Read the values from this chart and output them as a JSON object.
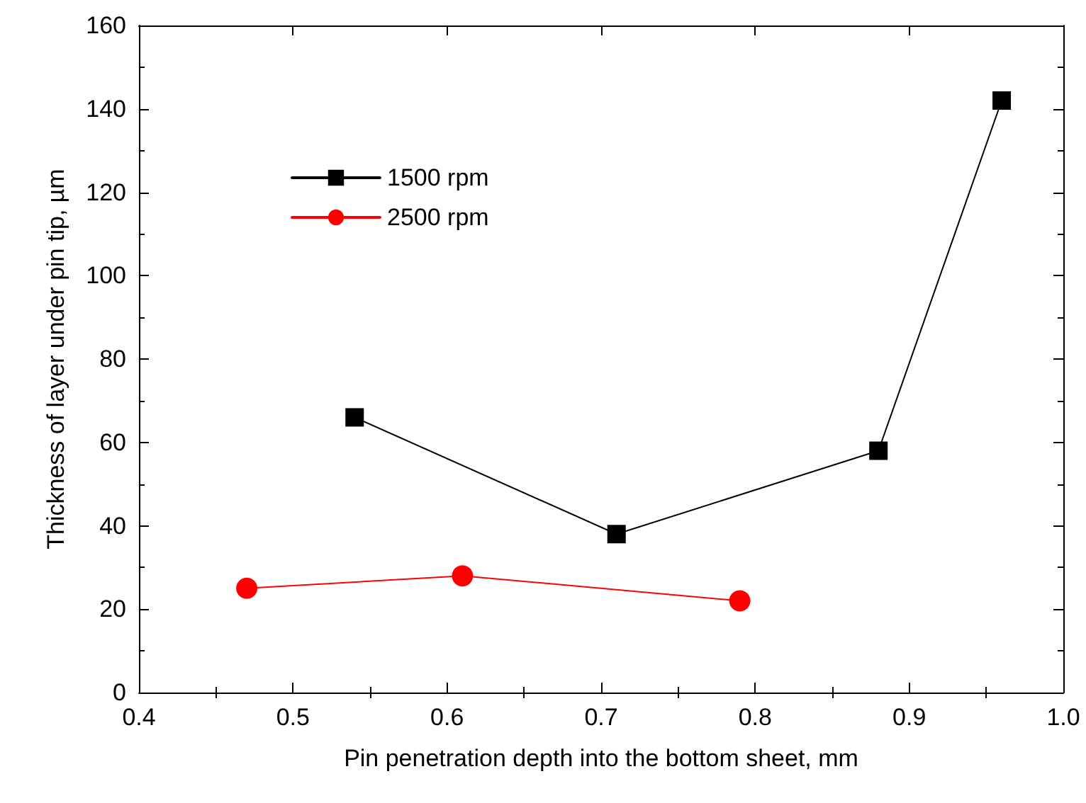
{
  "chart_data": {
    "type": "line",
    "xlabel": "Pin penetration depth into the bottom sheet, mm",
    "ylabel": "Thickness of layer under pin tip, µm",
    "xlim": [
      0.4,
      1.0
    ],
    "xticks": [
      0.4,
      0.5,
      0.6,
      0.7,
      0.8,
      0.9,
      {
        "value": 1.0,
        "label": "1.0"
      }
    ],
    "ylim": [
      0,
      160
    ],
    "yticks": [
      0,
      20,
      40,
      60,
      80,
      100,
      120,
      140,
      160
    ],
    "grid": false,
    "legend": "top left",
    "line_style": "solid",
    "series": [
      {
        "name": "1500 rpm",
        "color": "#000000",
        "marker": "square",
        "x": [
          0.54,
          0.71,
          0.88,
          0.96
        ],
        "values": [
          66,
          38,
          58,
          142
        ]
      },
      {
        "name": "2500 rpm",
        "color": "#ff0000",
        "marker": "circle",
        "x": [
          0.47,
          0.61,
          0.79
        ],
        "values": [
          25,
          28,
          22
        ]
      }
    ]
  }
}
